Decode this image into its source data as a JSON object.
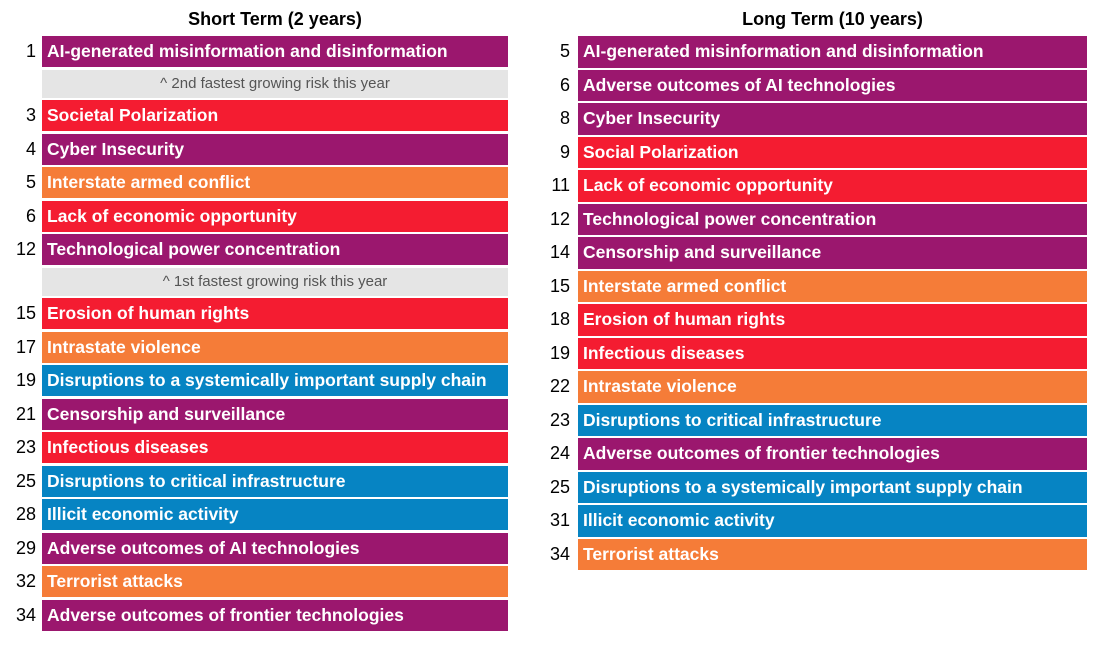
{
  "colors": {
    "purple": "#9b176e",
    "red": "#f41c31",
    "orange": "#f57c38",
    "blue": "#0684c3",
    "note_bg": "#e5e5e5"
  },
  "short_term": {
    "title": "Short Term (2 years)",
    "items": [
      {
        "rank": "1",
        "label": "AI-generated misinformation and disinformation",
        "color": "purple"
      },
      {
        "note": "^ 2nd fastest growing risk this year"
      },
      {
        "rank": "3",
        "label": "Societal Polarization",
        "color": "red"
      },
      {
        "rank": "4",
        "label": "Cyber Insecurity",
        "color": "purple"
      },
      {
        "rank": "5",
        "label": "Interstate armed conflict",
        "color": "orange"
      },
      {
        "rank": "6",
        "label": "Lack of economic opportunity",
        "color": "red"
      },
      {
        "rank": "12",
        "label": "Technological power concentration",
        "color": "purple"
      },
      {
        "note": "^ 1st fastest growing risk this year"
      },
      {
        "rank": "15",
        "label": "Erosion of human rights",
        "color": "red"
      },
      {
        "rank": "17",
        "label": "Intrastate violence",
        "color": "orange"
      },
      {
        "rank": "19",
        "label": "Disruptions to a systemically important supply chain",
        "color": "blue"
      },
      {
        "rank": "21",
        "label": "Censorship and surveillance",
        "color": "purple"
      },
      {
        "rank": "23",
        "label": "Infectious diseases",
        "color": "red"
      },
      {
        "rank": "25",
        "label": "Disruptions to critical infrastructure",
        "color": "blue"
      },
      {
        "rank": "28",
        "label": "Illicit economic activity",
        "color": "blue"
      },
      {
        "rank": "29",
        "label": "Adverse outcomes of AI technologies",
        "color": "purple"
      },
      {
        "rank": "32",
        "label": "Terrorist attacks",
        "color": "orange"
      },
      {
        "rank": "34",
        "label": "Adverse outcomes of frontier technologies",
        "color": "purple"
      }
    ]
  },
  "long_term": {
    "title": "Long Term (10 years)",
    "items": [
      {
        "rank": "5",
        "label": "AI-generated misinformation and disinformation",
        "color": "purple"
      },
      {
        "rank": "6",
        "label": "Adverse outcomes of AI technologies",
        "color": "purple"
      },
      {
        "rank": "8",
        "label": "Cyber Insecurity",
        "color": "purple"
      },
      {
        "rank": "9",
        "label": "Social Polarization",
        "color": "red"
      },
      {
        "rank": "11",
        "label": "Lack of economic opportunity",
        "color": "red"
      },
      {
        "rank": "12",
        "label": "Technological power concentration",
        "color": "purple"
      },
      {
        "rank": "14",
        "label": "Censorship and surveillance",
        "color": "purple"
      },
      {
        "rank": "15",
        "label": "Interstate armed conflict",
        "color": "orange"
      },
      {
        "rank": "18",
        "label": "Erosion of human rights",
        "color": "red"
      },
      {
        "rank": "19",
        "label": "Infectious diseases",
        "color": "red"
      },
      {
        "rank": "22",
        "label": "Intrastate violence",
        "color": "orange"
      },
      {
        "rank": "23",
        "label": "Disruptions to critical infrastructure",
        "color": "blue"
      },
      {
        "rank": "24",
        "label": "Adverse outcomes of frontier technologies",
        "color": "purple"
      },
      {
        "rank": "25",
        "label": "Disruptions to a systemically important supply chain",
        "color": "blue"
      },
      {
        "rank": "31",
        "label": "Illicit economic activity",
        "color": "blue"
      },
      {
        "rank": "34",
        "label": "Terrorist attacks",
        "color": "orange"
      }
    ]
  }
}
